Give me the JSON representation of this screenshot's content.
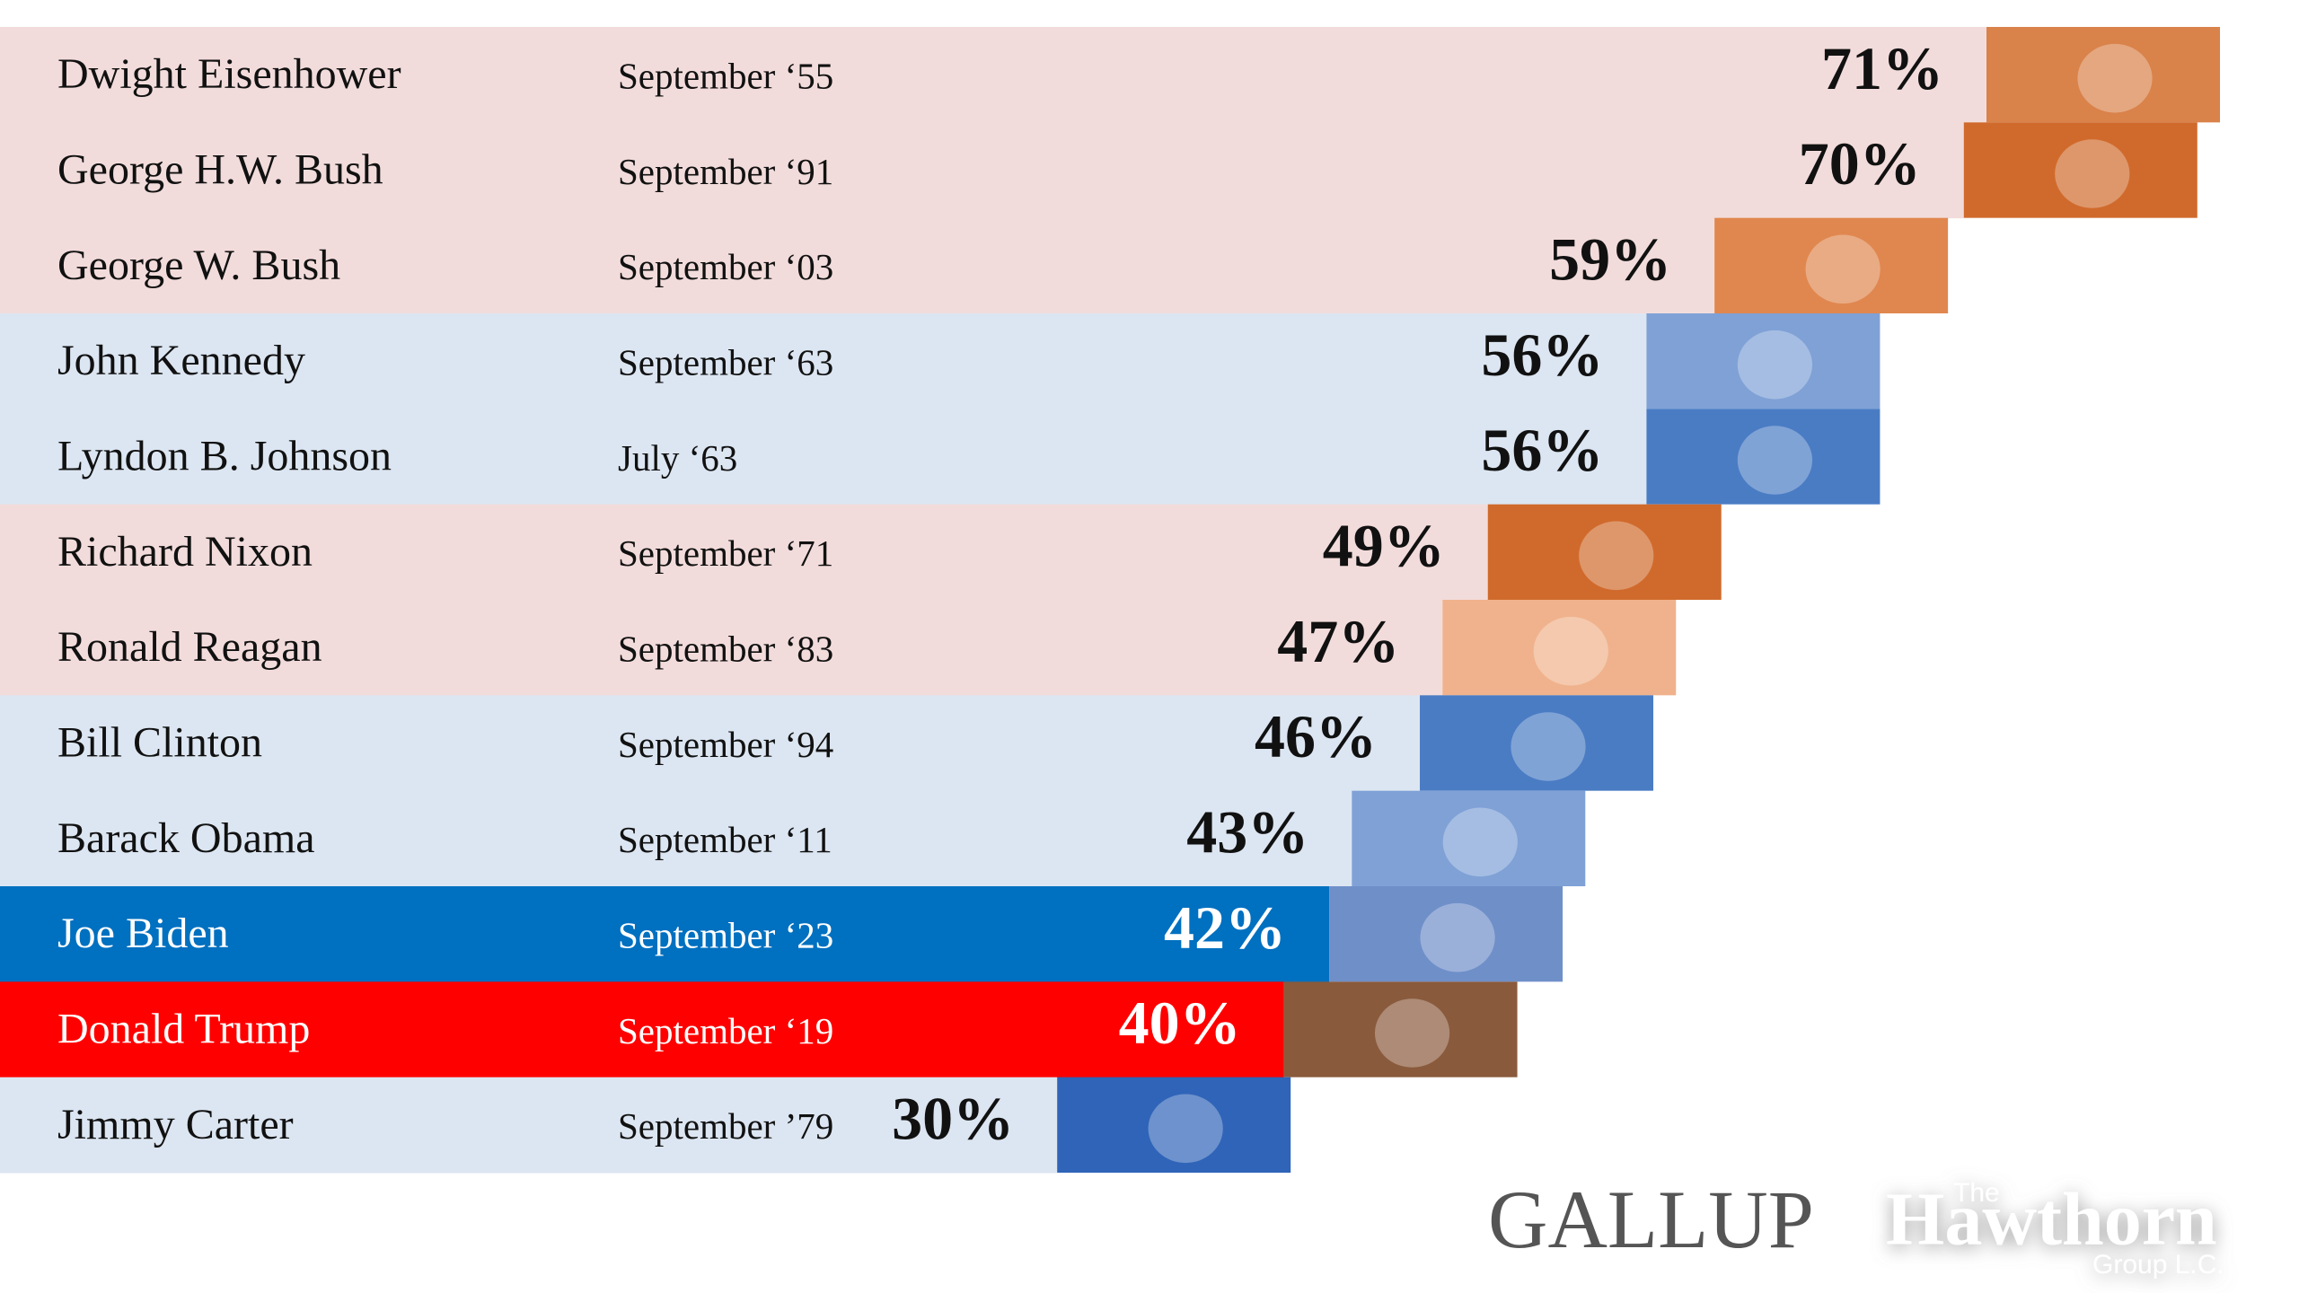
{
  "chart_data": {
    "type": "bar",
    "orientation": "horizontal",
    "categories": [
      "Dwight Eisenhower",
      "George H.W. Bush",
      "George W. Bush",
      "John Kennedy",
      "Lyndon B. Johnson",
      "Richard Nixon",
      "Ronald Reagan",
      "Bill Clinton",
      "Barack Obama",
      "Joe Biden",
      "Donald Trump",
      "Jimmy Carter"
    ],
    "dates": [
      "September ‘55",
      "September ‘91",
      "September ‘03",
      "September ‘63",
      "July  ‘63",
      "September ‘71",
      "September ‘83",
      "September ‘94",
      "September  ‘11",
      "September ‘23",
      "September ‘19",
      "September  ’79"
    ],
    "values": [
      71,
      70,
      59,
      56,
      56,
      49,
      47,
      46,
      43,
      42,
      40,
      30
    ],
    "value_labels": [
      "71%",
      "70%",
      "59%",
      "56%",
      "56%",
      "49%",
      "47%",
      "46%",
      "43%",
      "42%",
      "40%",
      "30%"
    ],
    "colors": [
      "#f2dcdb",
      "#f2dcdb",
      "#f2dcdb",
      "#dce6f2",
      "#dce6f2",
      "#f2dcdb",
      "#f2dcdb",
      "#dce6f2",
      "#dce6f2",
      "#0070c0",
      "#ff0000",
      "#dce6f2"
    ],
    "photo_colors": [
      "#d9824a",
      "#d06a2c",
      "#e0874f",
      "#7fa1d6",
      "#4a7cc4",
      "#d06a2c",
      "#f0b28c",
      "#4a7cc4",
      "#7fa1d6",
      "#6f8fc9",
      "#8a5a3c",
      "#2f64b8"
    ],
    "text_colors": [
      "#111111",
      "#111111",
      "#111111",
      "#111111",
      "#111111",
      "#111111",
      "#111111",
      "#111111",
      "#111111",
      "#ffffff",
      "#ffffff",
      "#111111"
    ]
  },
  "logos": {
    "gallup": "GALLUP",
    "hawthorn_the": "The",
    "hawthorn_name": "Hawthorn",
    "hawthorn_group": "Group L.C."
  }
}
